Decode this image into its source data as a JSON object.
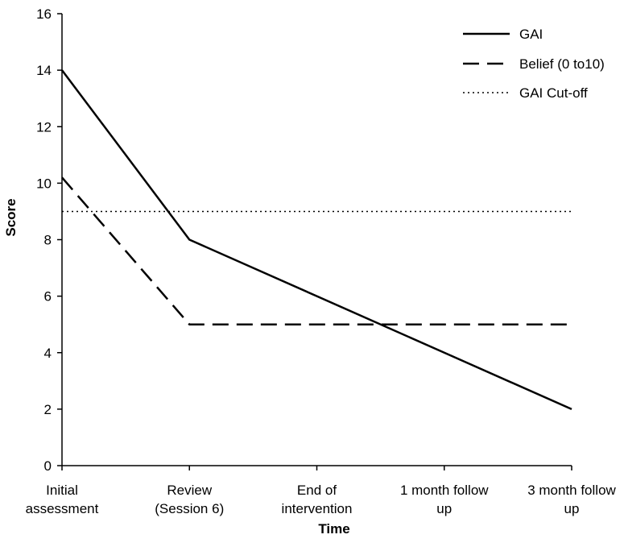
{
  "chart_data": {
    "type": "line",
    "title": "",
    "xlabel": "Time",
    "ylabel": "Score",
    "ylim": [
      0,
      16
    ],
    "yticks": [
      0,
      2,
      4,
      6,
      8,
      10,
      12,
      14,
      16
    ],
    "categories": [
      [
        "Initial",
        "assessment"
      ],
      [
        "Review",
        "(Session 6)"
      ],
      [
        "End of",
        "intervention"
      ],
      [
        "1 month follow",
        "up"
      ],
      [
        "3 month follow",
        "up"
      ]
    ],
    "series": [
      {
        "name": "GAI",
        "style": "solid",
        "values": [
          14,
          8,
          6,
          4,
          2
        ]
      },
      {
        "name": "Belief (0 to10)",
        "style": "dashed",
        "values": [
          10.2,
          5,
          5,
          5,
          5
        ]
      },
      {
        "name": "GAI Cut-off",
        "style": "dotted",
        "values": [
          9,
          9,
          9,
          9,
          9
        ]
      }
    ],
    "grid": false,
    "legend_position": "top-right"
  }
}
